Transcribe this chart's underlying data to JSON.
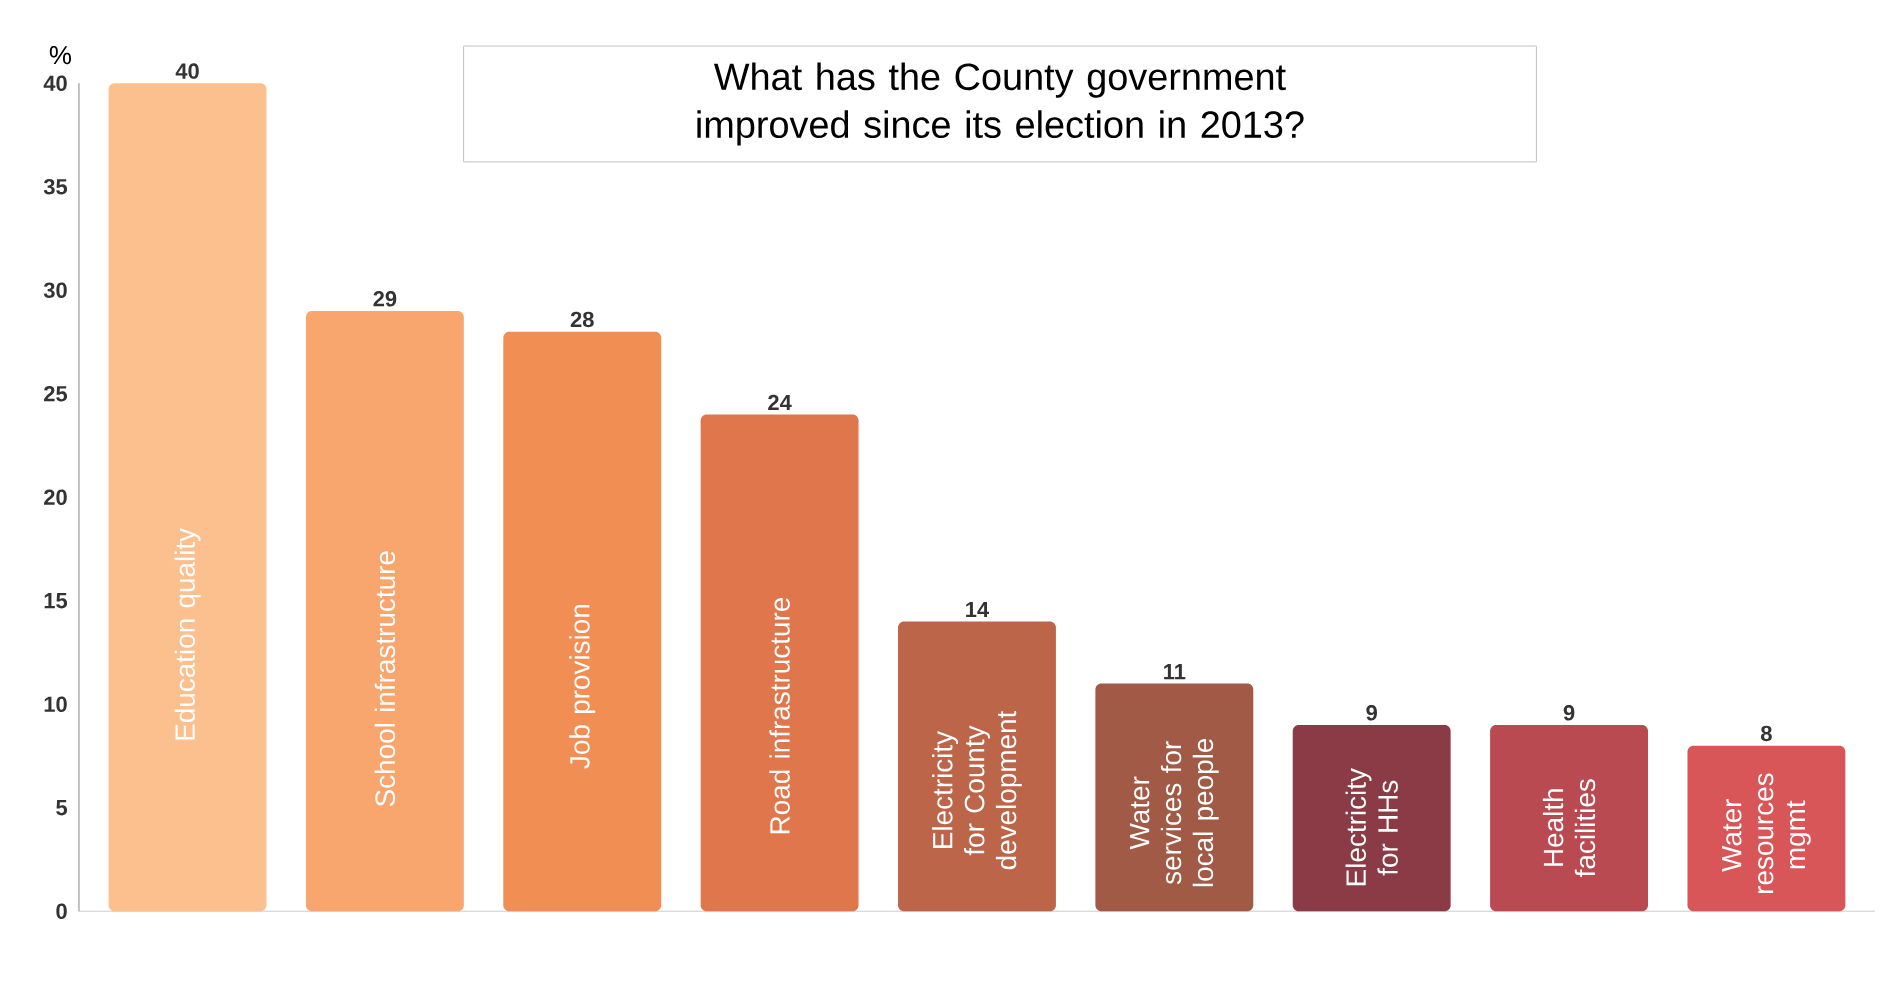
{
  "chart_data": {
    "type": "bar",
    "title": "What has the County government improved since its election in 2013?",
    "ylabel": "%",
    "categories": [
      "Education quality",
      "School infrastructure",
      "Job provision",
      "Road infrastructure",
      "Electricity for County development",
      "Water services for local people",
      "Electricity for HHs",
      "Health facilities",
      "Water resources mgmt"
    ],
    "values": [
      40,
      29,
      28,
      24,
      14,
      11,
      9,
      9,
      8
    ],
    "colors": [
      "#fcc08f",
      "#f9a66e",
      "#f18e54",
      "#e0774c",
      "#bc6548",
      "#a15a46",
      "#8a3b45",
      "#b94a51",
      "#d85558"
    ],
    "ylim": [
      0,
      40
    ],
    "yticks": [
      0,
      5,
      10,
      15,
      20,
      25,
      30,
      35,
      40
    ],
    "data_labels": true
  }
}
